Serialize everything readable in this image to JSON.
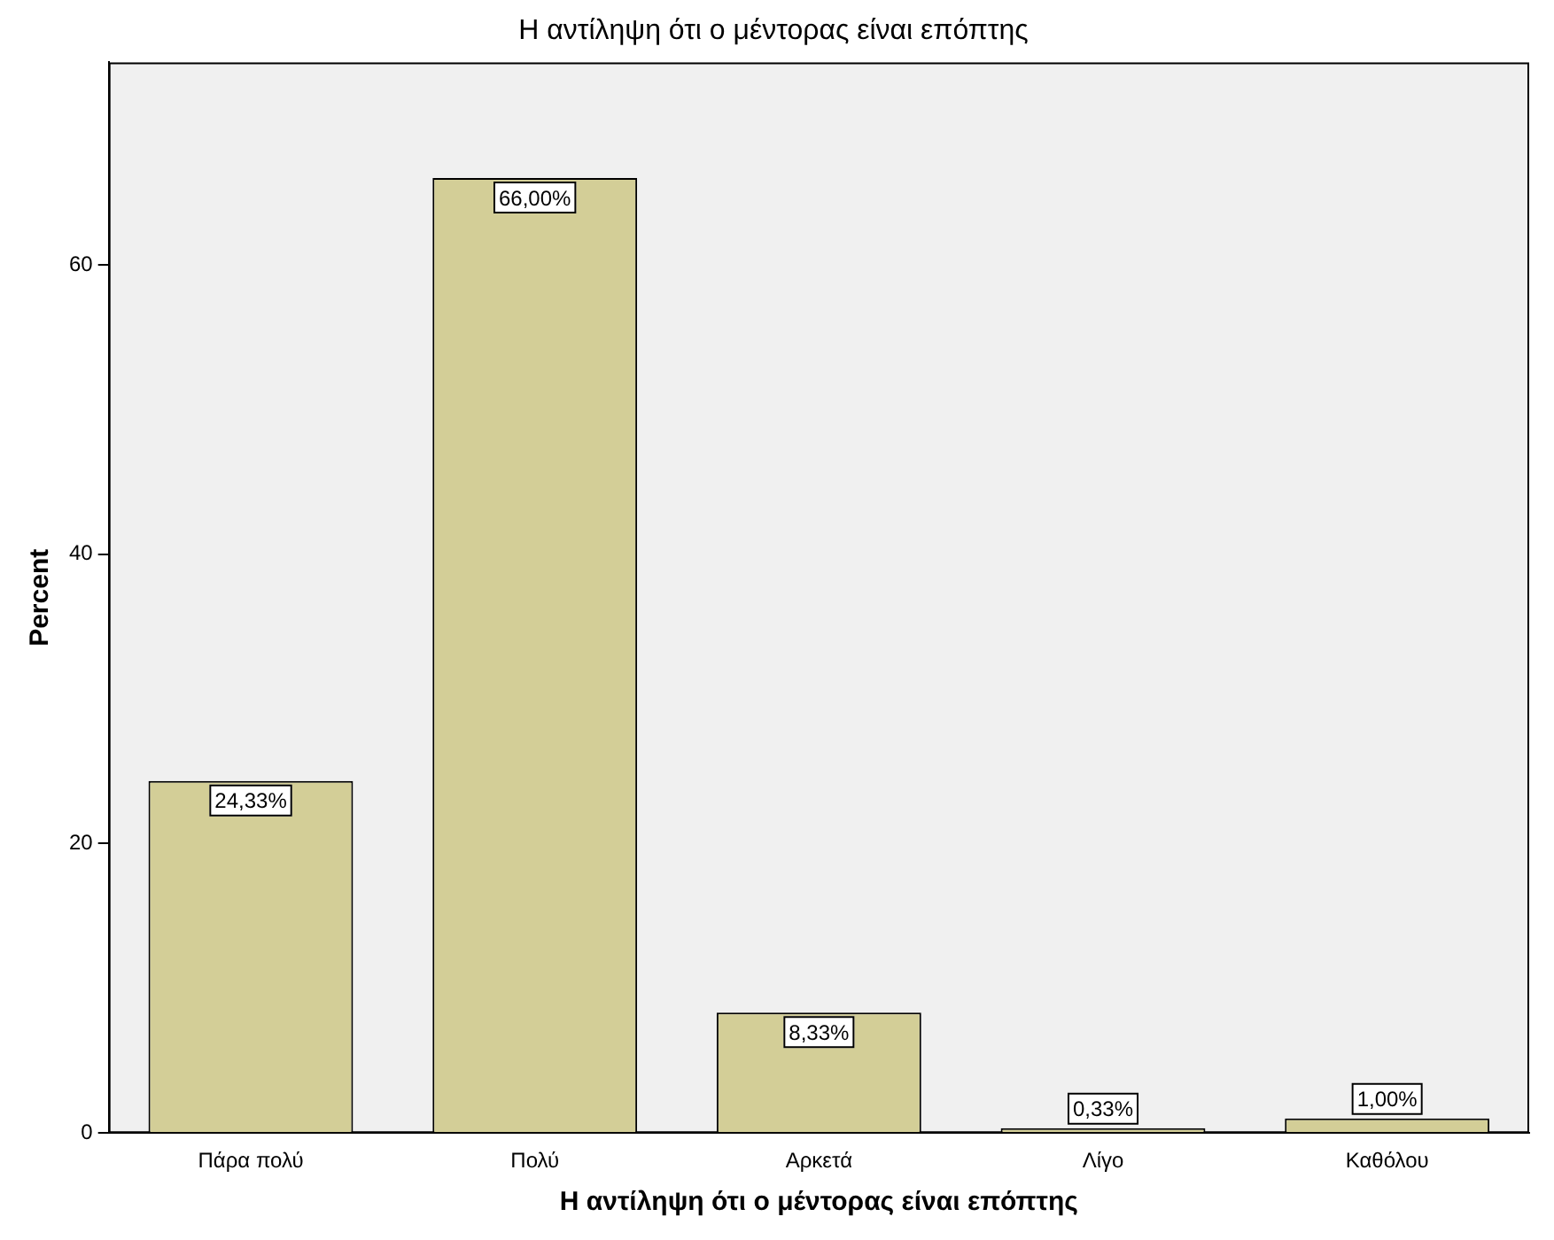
{
  "chart_data": {
    "type": "bar",
    "title": "Η αντίληψη ότι ο μέντορας είναι επόπτης",
    "xlabel": "Η αντίληψη ότι ο μέντορας είναι επόπτης",
    "ylabel": "Percent",
    "categories": [
      "Πάρα πολύ",
      "Πολύ",
      "Αρκετά",
      "Λίγο",
      "Καθόλου"
    ],
    "values": [
      24.33,
      66.0,
      8.33,
      0.33,
      1.0
    ],
    "value_labels": [
      "24,33%",
      "66,00%",
      "8,33%",
      "0,33%",
      "1,00%"
    ],
    "color": "#d3ce97",
    "ylim": [
      0,
      74
    ],
    "yticks": [
      0,
      20,
      40,
      60
    ],
    "grid": false,
    "legend": false
  }
}
